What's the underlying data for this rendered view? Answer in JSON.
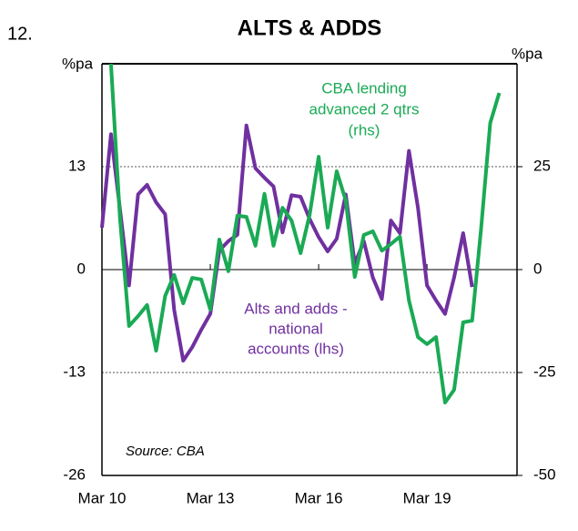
{
  "chart_data": {
    "type": "line",
    "number": "12.",
    "title": "ALTS & ADDS",
    "ylabel": "%pa",
    "y2label": "%pa",
    "source": "Source: CBA",
    "annotations": [
      "CBA lending",
      "advanced 2 qtrs",
      "(rhs)",
      "Alts and adds -",
      "national",
      "accounts (lhs)"
    ],
    "categories": [
      "Mar 10",
      null,
      null,
      null,
      null,
      null,
      null,
      null,
      null,
      null,
      null,
      null,
      "Mar 13",
      null,
      null,
      null,
      null,
      null,
      null,
      null,
      null,
      null,
      null,
      null,
      "Mar 16",
      null,
      null,
      null,
      null,
      null,
      null,
      null,
      null,
      null,
      null,
      null,
      "Mar 19",
      null,
      null,
      null,
      null,
      null,
      null,
      null,
      null
    ],
    "ylim": [
      -26,
      26
    ],
    "yticks": [
      -26,
      -13,
      0,
      13
    ],
    "y2lim": [
      -50,
      50
    ],
    "y2ticks": [
      -50,
      -25,
      0,
      25
    ],
    "grid": true,
    "series": [
      {
        "name": "Alts and adds - national accounts (lhs)",
        "color": "#7030a0",
        "values": [
          5.3,
          17.1,
          7.6,
          -2.0,
          9.5,
          10.7,
          8.5,
          7.0,
          -5.1,
          -11.5,
          -9.8,
          -7.6,
          -5.6,
          2.4,
          3.6,
          4.4,
          18.2,
          12.8,
          11.6,
          10.5,
          4.7,
          9.4,
          9.2,
          6.4,
          4.1,
          2.3,
          3.9,
          9.5,
          0.7,
          3.6,
          -1.0,
          -3.7,
          6.2,
          4.6,
          15.0,
          7.8,
          -2.0,
          -3.9,
          -5.6,
          -1.0,
          4.6,
          -2.2,
          null,
          null,
          null
        ]
      },
      {
        "name": "CBA lending advanced 2 qtrs (rhs)",
        "color": "#1aaa55",
        "axis": "y2",
        "values": [
          null,
          50,
          12.4,
          -13.7,
          -11.3,
          -8.6,
          -19.7,
          -6.4,
          -1.3,
          -8.2,
          -2.0,
          -2.4,
          -9.7,
          7.3,
          -0.4,
          13.1,
          12.8,
          5.8,
          18.4,
          5.8,
          15.0,
          11.9,
          4.0,
          13.3,
          27.4,
          10.2,
          23.9,
          16.8,
          -1.8,
          8.4,
          9.3,
          4.6,
          6.2,
          8.0,
          -7.5,
          -16.4,
          -18.1,
          -16.4,
          -32.3,
          -29.2,
          -12.8,
          -12.4,
          10.2,
          35.6,
          42.9
        ]
      }
    ]
  }
}
